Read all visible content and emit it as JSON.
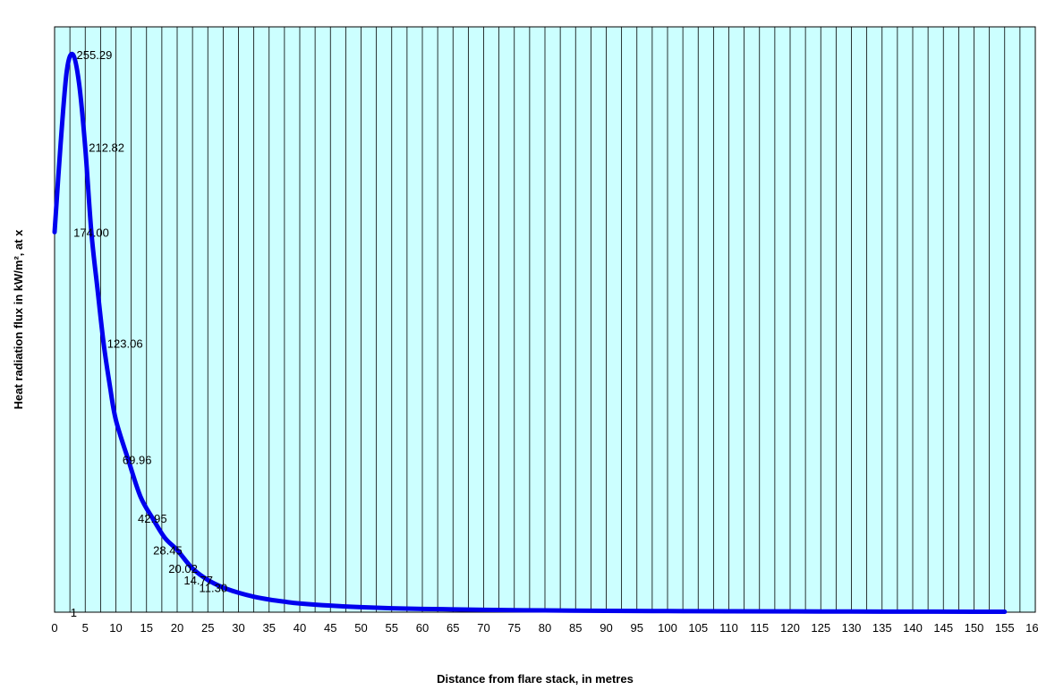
{
  "chart_data": {
    "type": "line",
    "title": "",
    "xlabel": "Distance from flare stack, in metres",
    "ylabel": "Heat radiation flux in kW/m², at x",
    "xlim": [
      0,
      160
    ],
    "ylim": [
      0,
      268
    ],
    "x_ticks": [
      0,
      5,
      10,
      15,
      20,
      25,
      30,
      35,
      40,
      45,
      50,
      55,
      60,
      65,
      70,
      75,
      80,
      85,
      90,
      95,
      100,
      105,
      110,
      115,
      120,
      125,
      130,
      135,
      140,
      145,
      150,
      155,
      160
    ],
    "x_tick_labels": [
      "0",
      "5",
      "10",
      "15",
      "20",
      "25",
      "30",
      "35",
      "40",
      "45",
      "50",
      "55",
      "60",
      "65",
      "70",
      "75",
      "80",
      "85",
      "90",
      "95",
      "100",
      "105",
      "110",
      "115",
      "120",
      "125",
      "130",
      "135",
      "140",
      "145",
      "150",
      "155",
      "160"
    ],
    "y_tick_labels_shown": false,
    "grid": "vertical",
    "background_color": "#ccffff",
    "series": [
      {
        "color": "#0000ee",
        "x": [
          0,
          1,
          2,
          3,
          4,
          5,
          6,
          7,
          8,
          9,
          10,
          12,
          14,
          16,
          18,
          20,
          22.5,
          25,
          27.5,
          30,
          32.5,
          35,
          37.5,
          40,
          45,
          50,
          55,
          60,
          65,
          70,
          80,
          90,
          100,
          110,
          120,
          130,
          140,
          150,
          155
        ],
        "y": [
          174.0,
          215.0,
          248.0,
          255.29,
          242.0,
          212.82,
          174.0,
          148.0,
          123.06,
          104.0,
          88.0,
          69.96,
          53.0,
          42.95,
          34.0,
          28.45,
          20.02,
          14.77,
          11.3,
          8.9,
          7.1,
          5.8,
          4.8,
          4.0,
          3.0,
          2.3,
          1.8,
          1.5,
          1.3,
          1.1,
          0.8,
          0.6,
          0.5,
          0.4,
          0.35,
          0.3,
          0.25,
          0.2,
          0.18
        ]
      }
    ],
    "data_labels": [
      {
        "x": 3,
        "y": 255.29,
        "text": "255.29"
      },
      {
        "x": 5,
        "y": 212.82,
        "text": "212.82"
      },
      {
        "x": 2.5,
        "y": 174.0,
        "text": "174.00"
      },
      {
        "x": 8,
        "y": 123.06,
        "text": "123.06"
      },
      {
        "x": 10.5,
        "y": 69.96,
        "text": "69.96"
      },
      {
        "x": 13,
        "y": 42.95,
        "text": "42.95"
      },
      {
        "x": 15.5,
        "y": 28.45,
        "text": "28.45"
      },
      {
        "x": 18,
        "y": 20.02,
        "text": "20.02"
      },
      {
        "x": 20.5,
        "y": 14.77,
        "text": "14.77"
      },
      {
        "x": 23,
        "y": 11.3,
        "text": "11.30"
      },
      {
        "x": 2,
        "y": 0,
        "text": "1"
      }
    ]
  }
}
